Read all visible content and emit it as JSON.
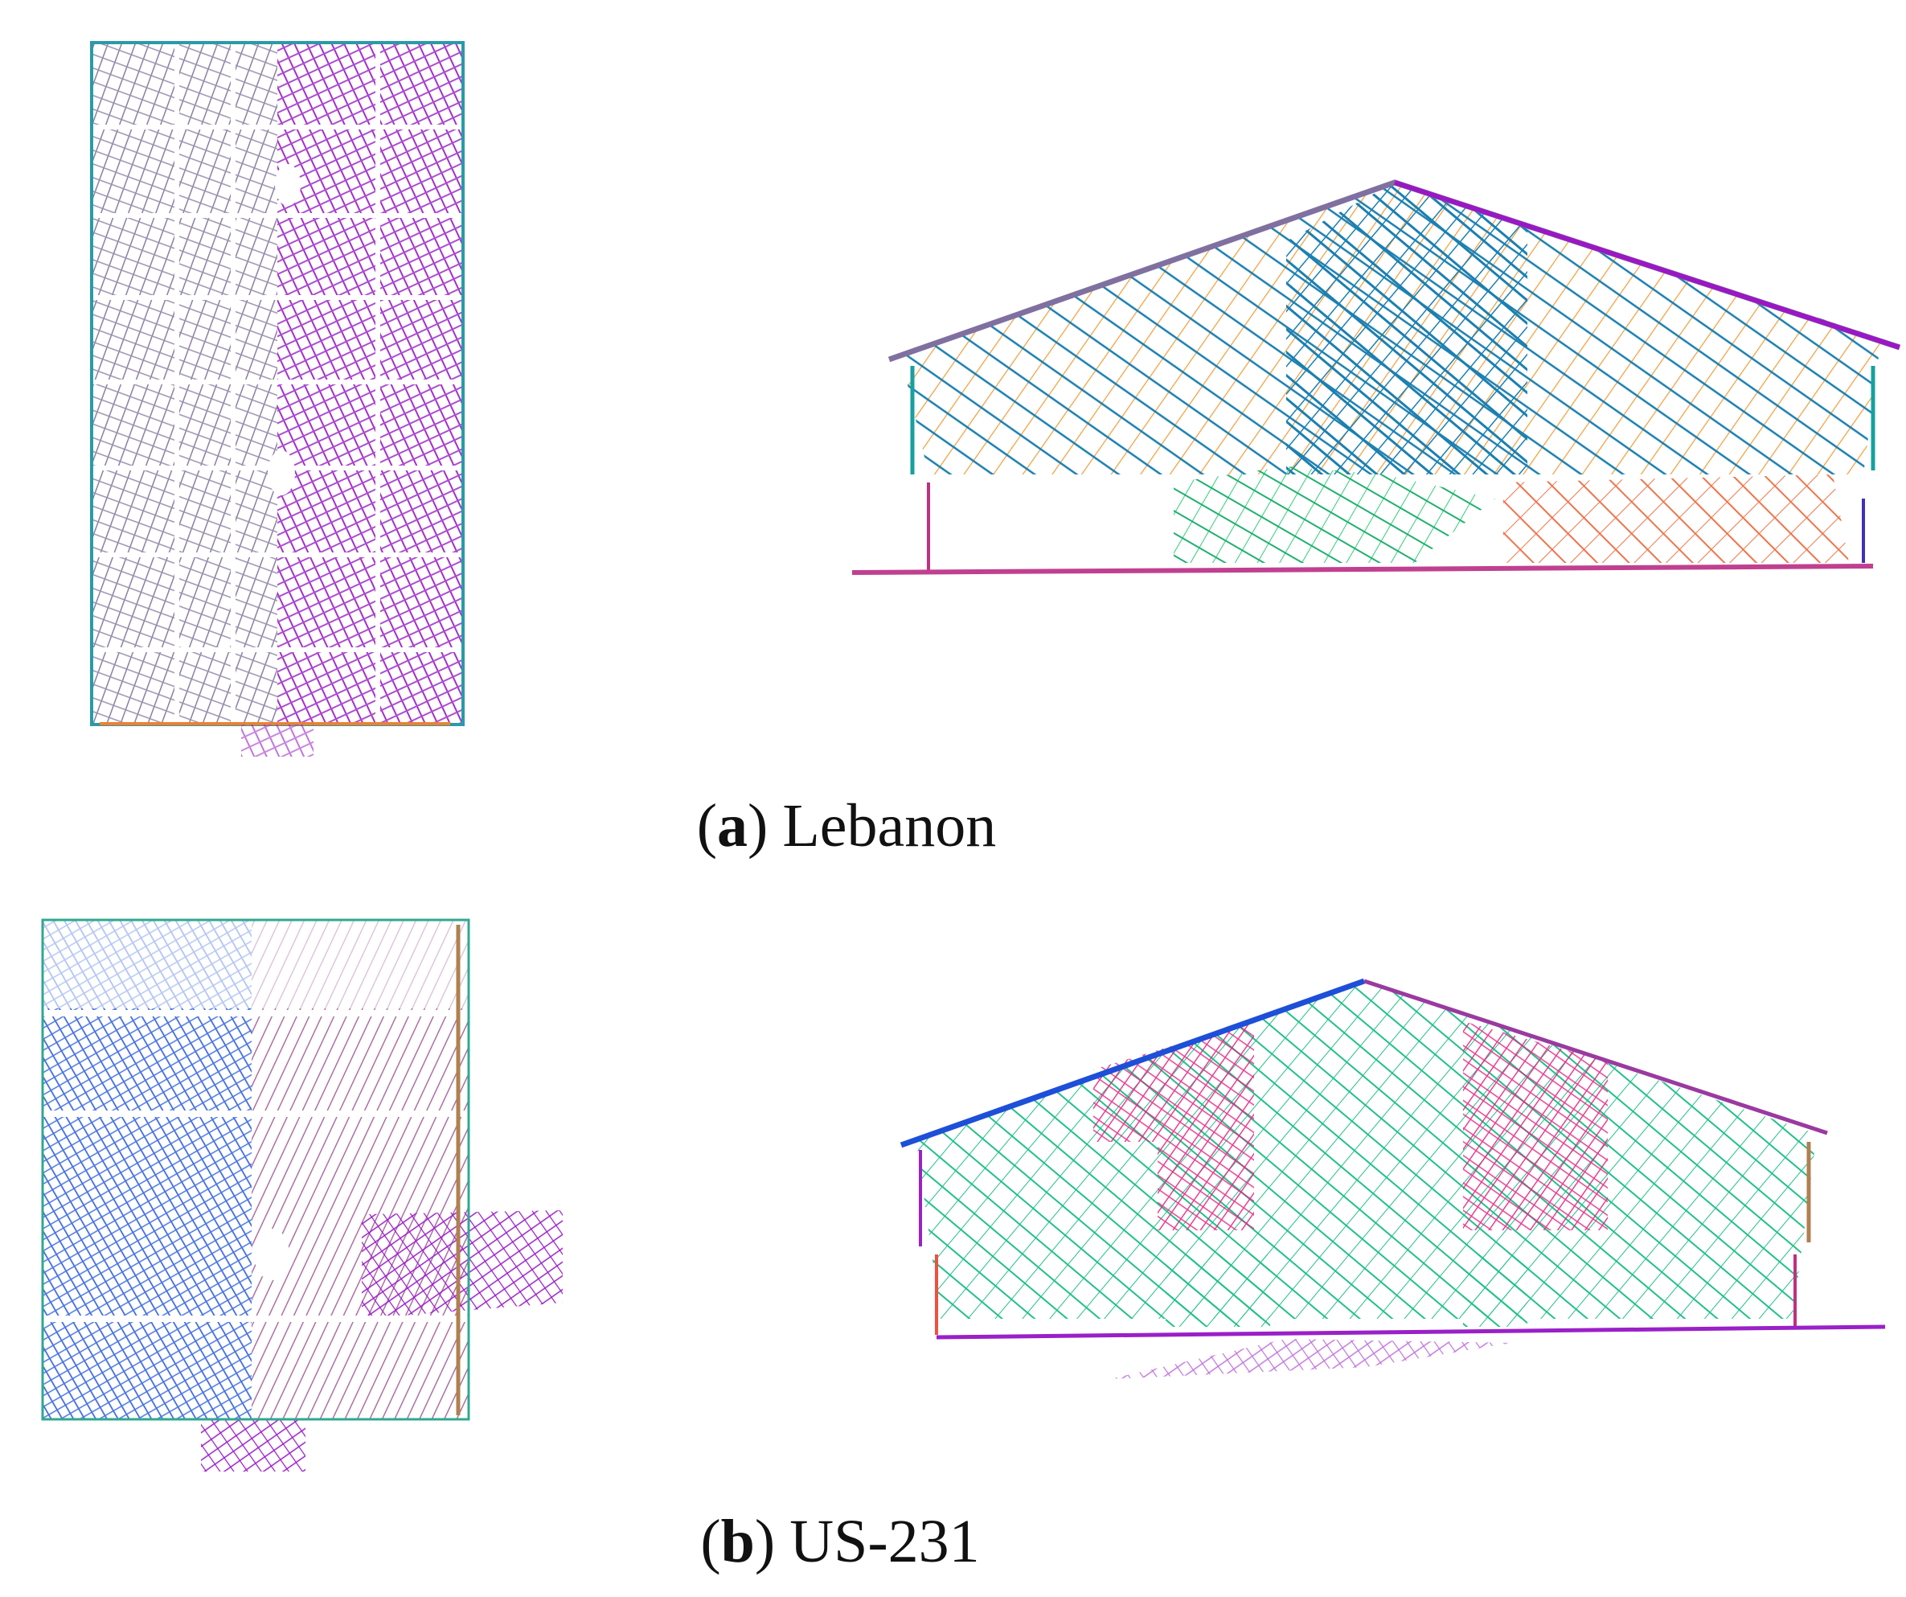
{
  "panels": [
    {
      "open": "(",
      "label": "a",
      "close": ")",
      "caption": "Lebanon"
    },
    {
      "open": "(",
      "label": "b",
      "close": ")",
      "caption": "US-231"
    }
  ]
}
